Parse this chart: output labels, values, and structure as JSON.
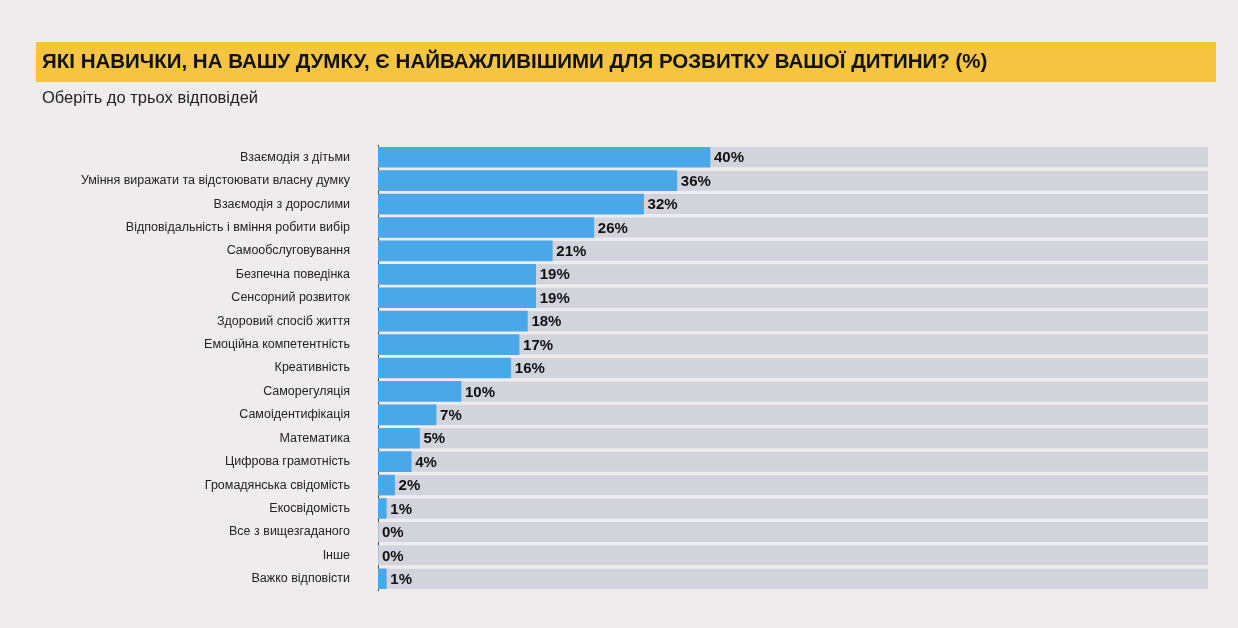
{
  "chart_data": {
    "type": "bar",
    "orientation": "horizontal",
    "title": "ЯКІ НАВИЧКИ, НА ВАШУ ДУМКУ, Є НАЙВАЖЛИВІШИМИ ДЛЯ РОЗВИТКУ ВАШОЇ ДИТИНИ? (%)",
    "subtitle": "Оберіть до трьох відповідей",
    "categories": [
      "Взаємодія з дітьми",
      "Уміння виражати та відстоювати власну думку",
      "Взаємодія з дорослими",
      "Відповідальність і вміння робити вибір",
      "Самообслуговування",
      "Безпечна поведінка",
      "Сенсорний розвиток",
      "Здоровий спосіб життя",
      "Емоційна компетентність",
      "Креативність",
      "Саморегуляція",
      "Самоідентифікація",
      "Математика",
      "Цифрова грамотність",
      "Громадянська свідомість",
      "Екосвідомість",
      "Все з вищезгаданого",
      "Інше",
      "Важко відповісти"
    ],
    "values": [
      40,
      36,
      32,
      26,
      21,
      19,
      19,
      18,
      17,
      16,
      10,
      7,
      5,
      4,
      2,
      1,
      0,
      0,
      1
    ],
    "value_labels": [
      "40%",
      "36%",
      "32%",
      "26%",
      "21%",
      "19%",
      "19%",
      "18%",
      "17%",
      "16%",
      "10%",
      "7%",
      "5%",
      "4%",
      "2%",
      "1%",
      "0%",
      "0%",
      "1%"
    ],
    "color": "#4aa8e8",
    "xlim": [
      0,
      100
    ],
    "tick_labels": "y",
    "legend": false
  }
}
